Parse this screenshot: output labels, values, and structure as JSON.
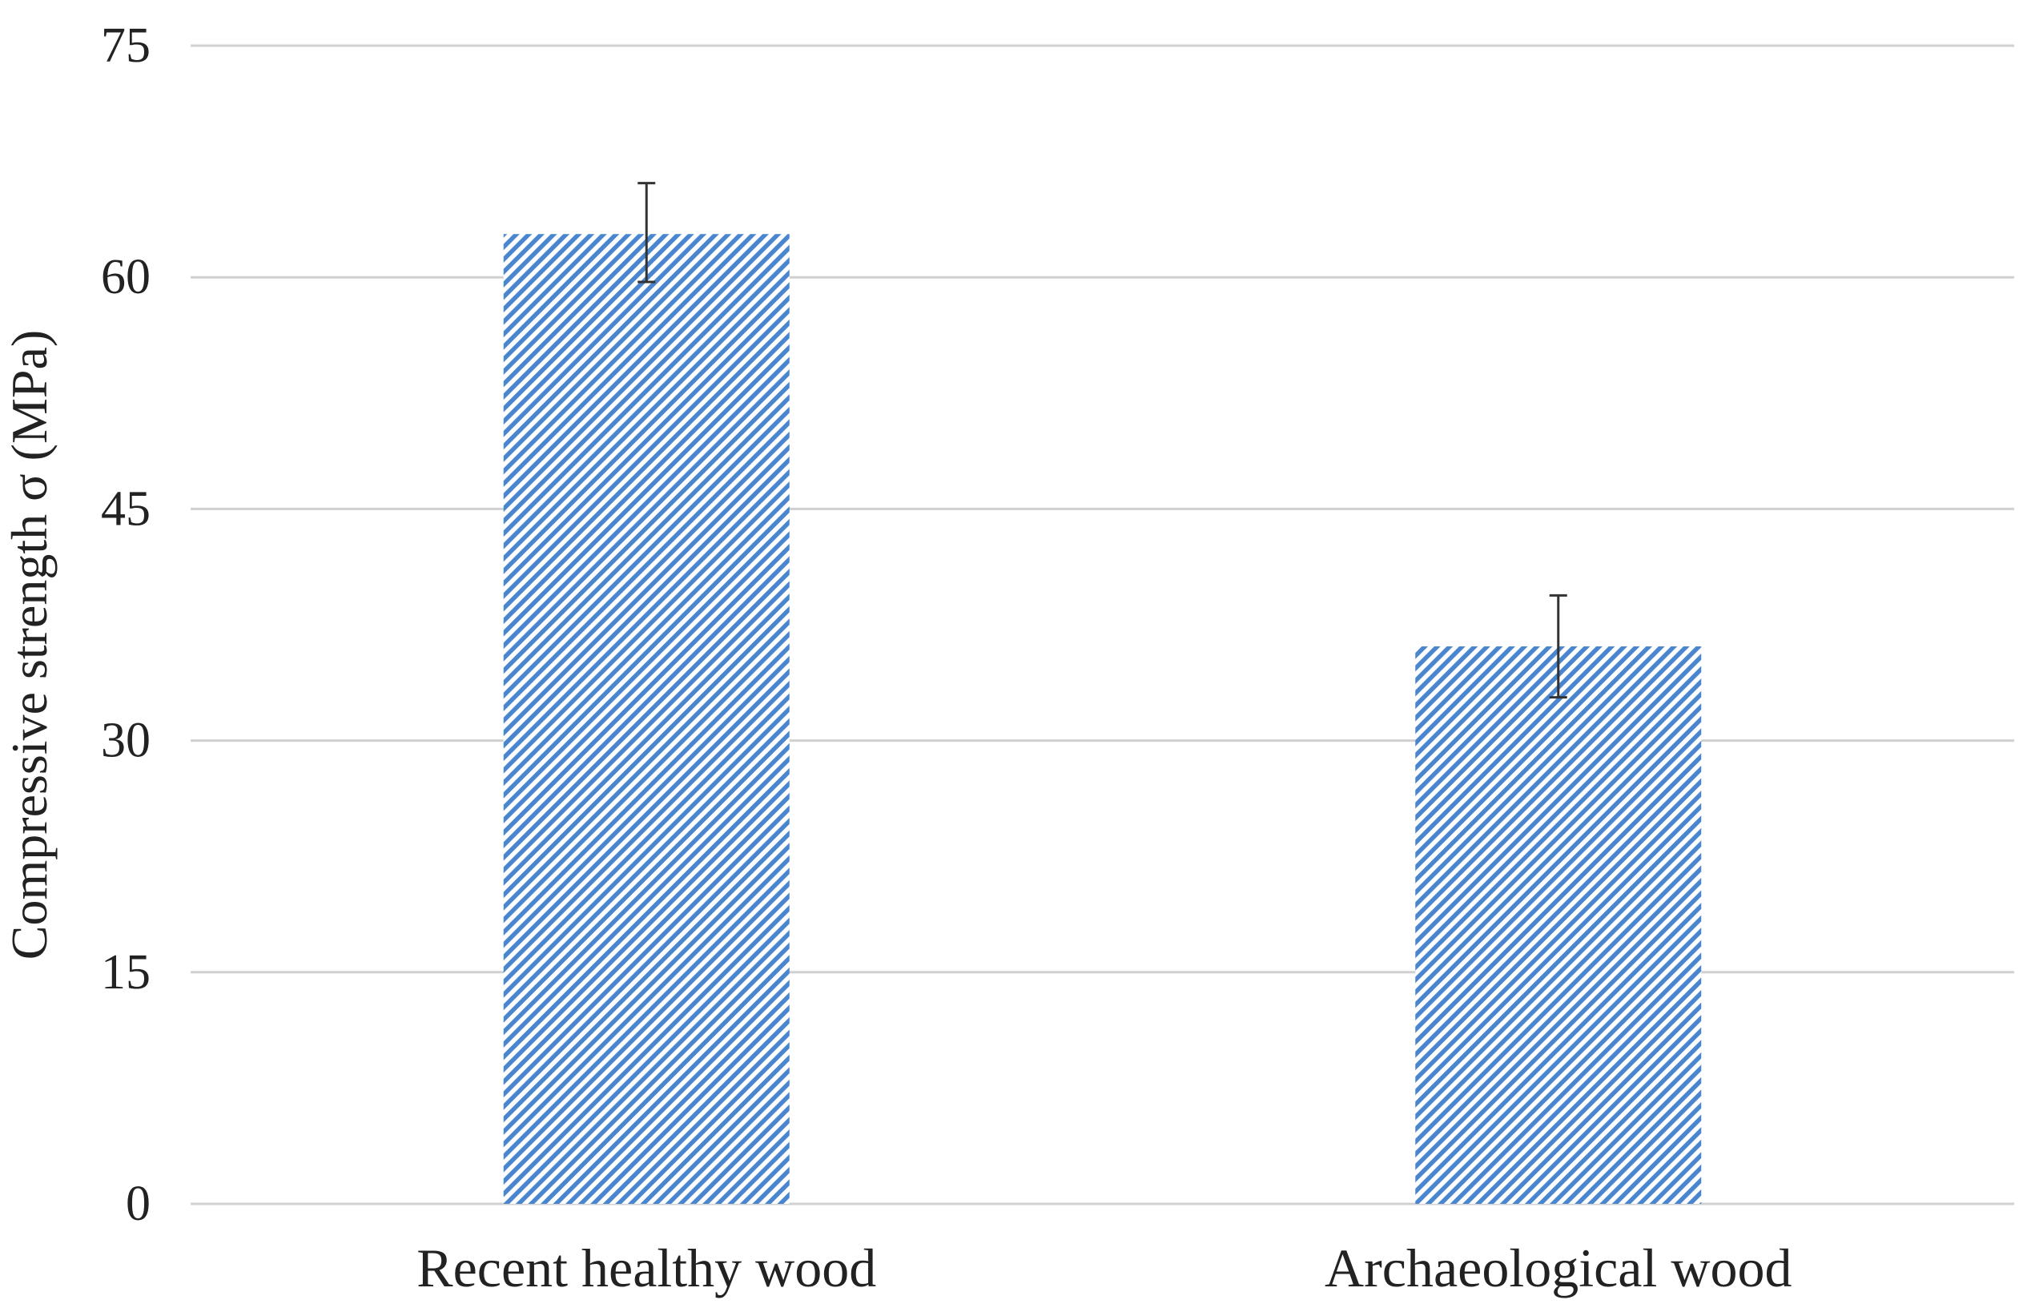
{
  "chart_data": {
    "type": "bar",
    "title": "",
    "xlabel": "",
    "ylabel": "Compressive strength  σ  (MPa)",
    "categories": [
      "Recent healthy wood",
      "Archaeological wood"
    ],
    "values": [
      62.8,
      36.1
    ],
    "error_low": [
      59.7,
      32.8
    ],
    "error_high": [
      66.1,
      39.4
    ],
    "ylim": [
      0,
      75
    ],
    "yticks": [
      0,
      15,
      30,
      45,
      60,
      75
    ],
    "ytick_labels": [
      "0",
      "15",
      "30",
      "45",
      "60",
      "75"
    ],
    "grid": true,
    "legend": "none",
    "bar_fill": "diagonal-hatch",
    "colors": {
      "bar": "#4a86d0",
      "bar_background": "#ffffff",
      "grid": "#d0d0d0",
      "error_bar": "#333333",
      "text": "#222222"
    }
  }
}
